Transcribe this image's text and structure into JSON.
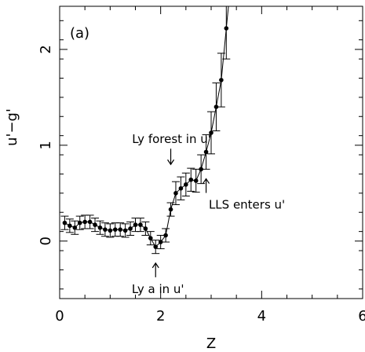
{
  "chart_data": {
    "type": "scatter",
    "panel_label": "(a)",
    "xlabel": "Z",
    "ylabel": "u'−g'",
    "xlim": [
      0,
      6
    ],
    "ylim": [
      -0.6,
      2.45
    ],
    "x_ticks": [
      0,
      2,
      4,
      6
    ],
    "x_tick_labels": [
      "0",
      "2",
      "4",
      "6"
    ],
    "y_ticks": [
      0,
      1,
      2
    ],
    "y_tick_labels": [
      "0",
      "1",
      "2"
    ],
    "grid": false,
    "legend": "none",
    "series": [
      {
        "style": "points-with-errorbars-and-line",
        "points": [
          {
            "x": 0.1,
            "y": 0.19,
            "err": 0.07
          },
          {
            "x": 0.2,
            "y": 0.16,
            "err": 0.07
          },
          {
            "x": 0.3,
            "y": 0.14,
            "err": 0.07
          },
          {
            "x": 0.4,
            "y": 0.19,
            "err": 0.07
          },
          {
            "x": 0.5,
            "y": 0.2,
            "err": 0.07
          },
          {
            "x": 0.6,
            "y": 0.2,
            "err": 0.07
          },
          {
            "x": 0.7,
            "y": 0.17,
            "err": 0.07
          },
          {
            "x": 0.8,
            "y": 0.14,
            "err": 0.07
          },
          {
            "x": 0.9,
            "y": 0.12,
            "err": 0.07
          },
          {
            "x": 1.0,
            "y": 0.11,
            "err": 0.07
          },
          {
            "x": 1.1,
            "y": 0.12,
            "err": 0.07
          },
          {
            "x": 1.2,
            "y": 0.12,
            "err": 0.07
          },
          {
            "x": 1.3,
            "y": 0.11,
            "err": 0.07
          },
          {
            "x": 1.4,
            "y": 0.13,
            "err": 0.07
          },
          {
            "x": 1.5,
            "y": 0.17,
            "err": 0.07
          },
          {
            "x": 1.6,
            "y": 0.17,
            "err": 0.07
          },
          {
            "x": 1.7,
            "y": 0.13,
            "err": 0.07
          },
          {
            "x": 1.8,
            "y": 0.03,
            "err": 0.07
          },
          {
            "x": 1.9,
            "y": -0.06,
            "err": 0.07
          },
          {
            "x": 2.0,
            "y": -0.01,
            "err": 0.07
          },
          {
            "x": 2.1,
            "y": 0.06,
            "err": 0.07
          },
          {
            "x": 2.2,
            "y": 0.33,
            "err": 0.07
          },
          {
            "x": 2.3,
            "y": 0.5,
            "err": 0.12
          },
          {
            "x": 2.4,
            "y": 0.55,
            "err": 0.12
          },
          {
            "x": 2.5,
            "y": 0.59,
            "err": 0.12
          },
          {
            "x": 2.6,
            "y": 0.64,
            "err": 0.12
          },
          {
            "x": 2.7,
            "y": 0.63,
            "err": 0.12
          },
          {
            "x": 2.8,
            "y": 0.75,
            "err": 0.15
          },
          {
            "x": 2.9,
            "y": 0.93,
            "err": 0.18
          },
          {
            "x": 3.0,
            "y": 1.13,
            "err": 0.22
          },
          {
            "x": 3.1,
            "y": 1.4,
            "err": 0.25
          },
          {
            "x": 3.2,
            "y": 1.68,
            "err": 0.28
          },
          {
            "x": 3.3,
            "y": 2.22,
            "err": 0.32
          }
        ]
      }
    ],
    "annotations": [
      {
        "text": "Ly forest in u'",
        "arrow": "down",
        "x": 2.2,
        "y": 0.8
      },
      {
        "text": "LLS enters u'",
        "arrow": "up",
        "x": 2.9,
        "y": 0.65
      },
      {
        "text": "Ly a in u'",
        "arrow": "up",
        "x": 1.9,
        "y": -0.23
      }
    ]
  }
}
